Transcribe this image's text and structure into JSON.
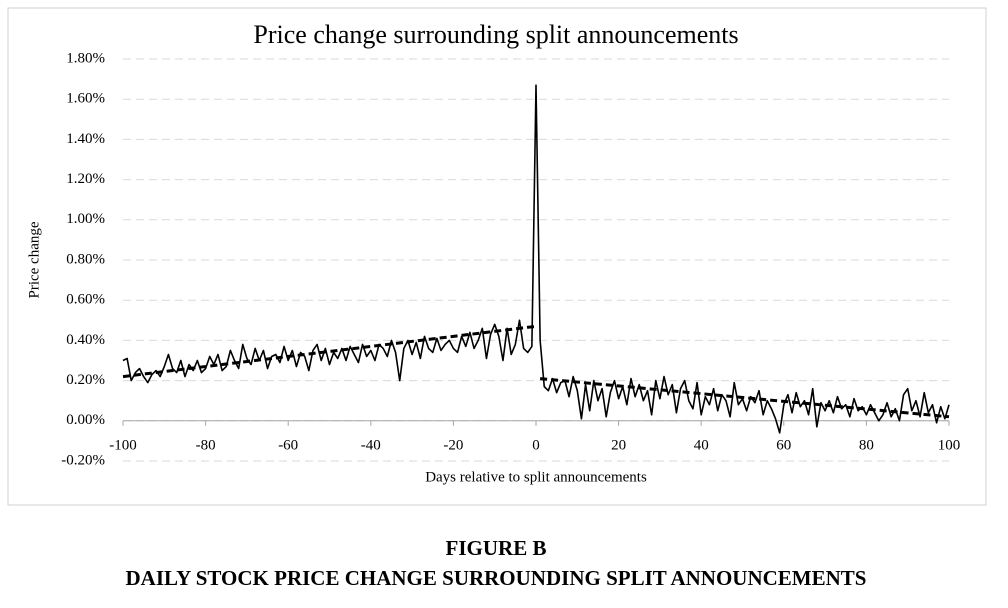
{
  "chart_data": {
    "type": "line",
    "title": "Price change surrounding split announcements",
    "xlabel": "Days relative to split announcements",
    "ylabel": "Price change",
    "xlim": [
      -100,
      100
    ],
    "xticks": [
      -100,
      -80,
      -60,
      -40,
      -20,
      0,
      20,
      40,
      60,
      80,
      100
    ],
    "ylim": [
      -0.2,
      1.8
    ],
    "yticks": [
      {
        "value": -0.2,
        "label": "-0.20%"
      },
      {
        "value": 0,
        "label": "0.00%"
      },
      {
        "value": 0.2,
        "label": "0.20%"
      },
      {
        "value": 0.4,
        "label": "0.40%"
      },
      {
        "value": 0.6,
        "label": "0.60%"
      },
      {
        "value": 0.8,
        "label": "0.80%"
      },
      {
        "value": 1.0,
        "label": "1.00%"
      },
      {
        "value": 1.2,
        "label": "1.20%"
      },
      {
        "value": 1.4,
        "label": "1.40%"
      },
      {
        "value": 1.6,
        "label": "1.60%"
      },
      {
        "value": 1.8,
        "label": "1.80%"
      }
    ],
    "grid": true,
    "x": [
      -100,
      -99,
      -98,
      -97,
      -96,
      -95,
      -94,
      -93,
      -92,
      -91,
      -90,
      -89,
      -88,
      -87,
      -86,
      -85,
      -84,
      -83,
      -82,
      -81,
      -80,
      -79,
      -78,
      -77,
      -76,
      -75,
      -74,
      -73,
      -72,
      -71,
      -70,
      -69,
      -68,
      -67,
      -66,
      -65,
      -64,
      -63,
      -62,
      -61,
      -60,
      -59,
      -58,
      -57,
      -56,
      -55,
      -54,
      -53,
      -52,
      -51,
      -50,
      -49,
      -48,
      -47,
      -46,
      -45,
      -44,
      -43,
      -42,
      -41,
      -40,
      -39,
      -38,
      -37,
      -36,
      -35,
      -34,
      -33,
      -32,
      -31,
      -30,
      -29,
      -28,
      -27,
      -26,
      -25,
      -24,
      -23,
      -22,
      -21,
      -20,
      -19,
      -18,
      -17,
      -16,
      -15,
      -14,
      -13,
      -12,
      -11,
      -10,
      -9,
      -8,
      -7,
      -6,
      -5,
      -4,
      -3,
      -2,
      -1,
      0,
      1,
      2,
      3,
      4,
      5,
      6,
      7,
      8,
      9,
      10,
      11,
      12,
      13,
      14,
      15,
      16,
      17,
      18,
      19,
      20,
      21,
      22,
      23,
      24,
      25,
      26,
      27,
      28,
      29,
      30,
      31,
      32,
      33,
      34,
      35,
      36,
      37,
      38,
      39,
      40,
      41,
      42,
      43,
      44,
      45,
      46,
      47,
      48,
      49,
      50,
      51,
      52,
      53,
      54,
      55,
      56,
      57,
      58,
      59,
      60,
      61,
      62,
      63,
      64,
      65,
      66,
      67,
      68,
      69,
      70,
      71,
      72,
      73,
      74,
      75,
      76,
      77,
      78,
      79,
      80,
      81,
      82,
      83,
      84,
      85,
      86,
      87,
      88,
      89,
      90,
      91,
      92,
      93,
      94,
      95,
      96,
      97,
      98,
      99,
      100
    ],
    "series": [
      {
        "color": "#000000",
        "dash": false,
        "values": [
          0.3,
          0.31,
          0.2,
          0.24,
          0.26,
          0.22,
          0.19,
          0.23,
          0.25,
          0.22,
          0.27,
          0.33,
          0.26,
          0.24,
          0.3,
          0.22,
          0.28,
          0.25,
          0.3,
          0.24,
          0.26,
          0.32,
          0.28,
          0.33,
          0.25,
          0.27,
          0.35,
          0.3,
          0.26,
          0.38,
          0.31,
          0.28,
          0.36,
          0.3,
          0.35,
          0.26,
          0.32,
          0.33,
          0.29,
          0.37,
          0.3,
          0.35,
          0.27,
          0.34,
          0.32,
          0.25,
          0.35,
          0.38,
          0.3,
          0.36,
          0.28,
          0.34,
          0.31,
          0.36,
          0.3,
          0.37,
          0.33,
          0.29,
          0.38,
          0.32,
          0.35,
          0.3,
          0.38,
          0.36,
          0.32,
          0.4,
          0.34,
          0.2,
          0.36,
          0.4,
          0.33,
          0.39,
          0.31,
          0.42,
          0.36,
          0.34,
          0.41,
          0.35,
          0.38,
          0.4,
          0.36,
          0.34,
          0.42,
          0.37,
          0.44,
          0.36,
          0.4,
          0.46,
          0.31,
          0.43,
          0.48,
          0.42,
          0.3,
          0.46,
          0.33,
          0.38,
          0.5,
          0.36,
          0.34,
          0.37,
          1.67,
          0.4,
          0.17,
          0.15,
          0.21,
          0.14,
          0.19,
          0.2,
          0.12,
          0.22,
          0.15,
          0.01,
          0.18,
          0.05,
          0.2,
          0.1,
          0.16,
          0.02,
          0.14,
          0.2,
          0.11,
          0.17,
          0.08,
          0.21,
          0.12,
          0.18,
          0.1,
          0.15,
          0.03,
          0.2,
          0.11,
          0.22,
          0.13,
          0.18,
          0.04,
          0.16,
          0.2,
          0.1,
          0.06,
          0.19,
          0.03,
          0.12,
          0.08,
          0.16,
          0.05,
          0.13,
          0.1,
          0.02,
          0.19,
          0.08,
          0.11,
          0.05,
          0.12,
          0.09,
          0.15,
          0.03,
          0.1,
          0.06,
          0.01,
          -0.06,
          0.08,
          0.13,
          0.04,
          0.14,
          0.07,
          0.1,
          0.03,
          0.16,
          -0.03,
          0.09,
          0.05,
          0.1,
          0.04,
          0.12,
          0.06,
          0.08,
          0.02,
          0.11,
          0.05,
          0.07,
          0.03,
          0.08,
          0.04,
          0.0,
          0.03,
          0.09,
          0.02,
          0.06,
          0.0,
          0.13,
          0.16,
          0.05,
          0.1,
          0.02,
          0.14,
          0.04,
          0.08,
          -0.01,
          0.07,
          0.01,
          0.08
        ]
      },
      {
        "color": "#000000",
        "dash": true,
        "x": [
          -100,
          0
        ],
        "values": [
          0.22,
          0.47
        ]
      },
      {
        "color": "#000000",
        "dash": true,
        "x": [
          1,
          100
        ],
        "values": [
          0.21,
          0.02
        ]
      }
    ]
  },
  "figure": {
    "label": "FIGURE B",
    "caption": "DAILY STOCK PRICE CHANGE SURROUNDING SPLIT ANNOUNCEMENTS"
  }
}
